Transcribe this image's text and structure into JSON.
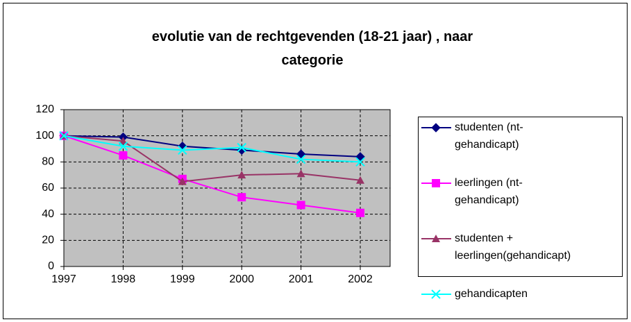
{
  "chart_data": {
    "type": "line",
    "title": "evolutie van de rechtgevenden (18-21 jaar) , naar categorie",
    "categories": [
      "1997",
      "1998",
      "1999",
      "2000",
      "2001",
      "2002"
    ],
    "series": [
      {
        "name": "studenten (nt-gehandicapt)",
        "color": "#000080",
        "marker": "diamond",
        "values": [
          100,
          99,
          92,
          89,
          86,
          84
        ]
      },
      {
        "name": "leerlingen (nt-gehandicapt)",
        "color": "#ff00ff",
        "marker": "square",
        "values": [
          100,
          85,
          67,
          53,
          47,
          41
        ]
      },
      {
        "name": "studenten + leerlingen(gehandicapt)",
        "color": "#993366",
        "marker": "triangle",
        "values": [
          100,
          96,
          65,
          70,
          71,
          66
        ]
      },
      {
        "name": "gehandicapten",
        "color": "#00ffff",
        "marker": "x",
        "values": [
          100,
          92,
          89,
          91,
          82,
          80
        ]
      }
    ],
    "ylim": [
      0,
      120
    ],
    "yticks": [
      0,
      20,
      40,
      60,
      80,
      100,
      120
    ],
    "grid": true,
    "legend": "right"
  }
}
